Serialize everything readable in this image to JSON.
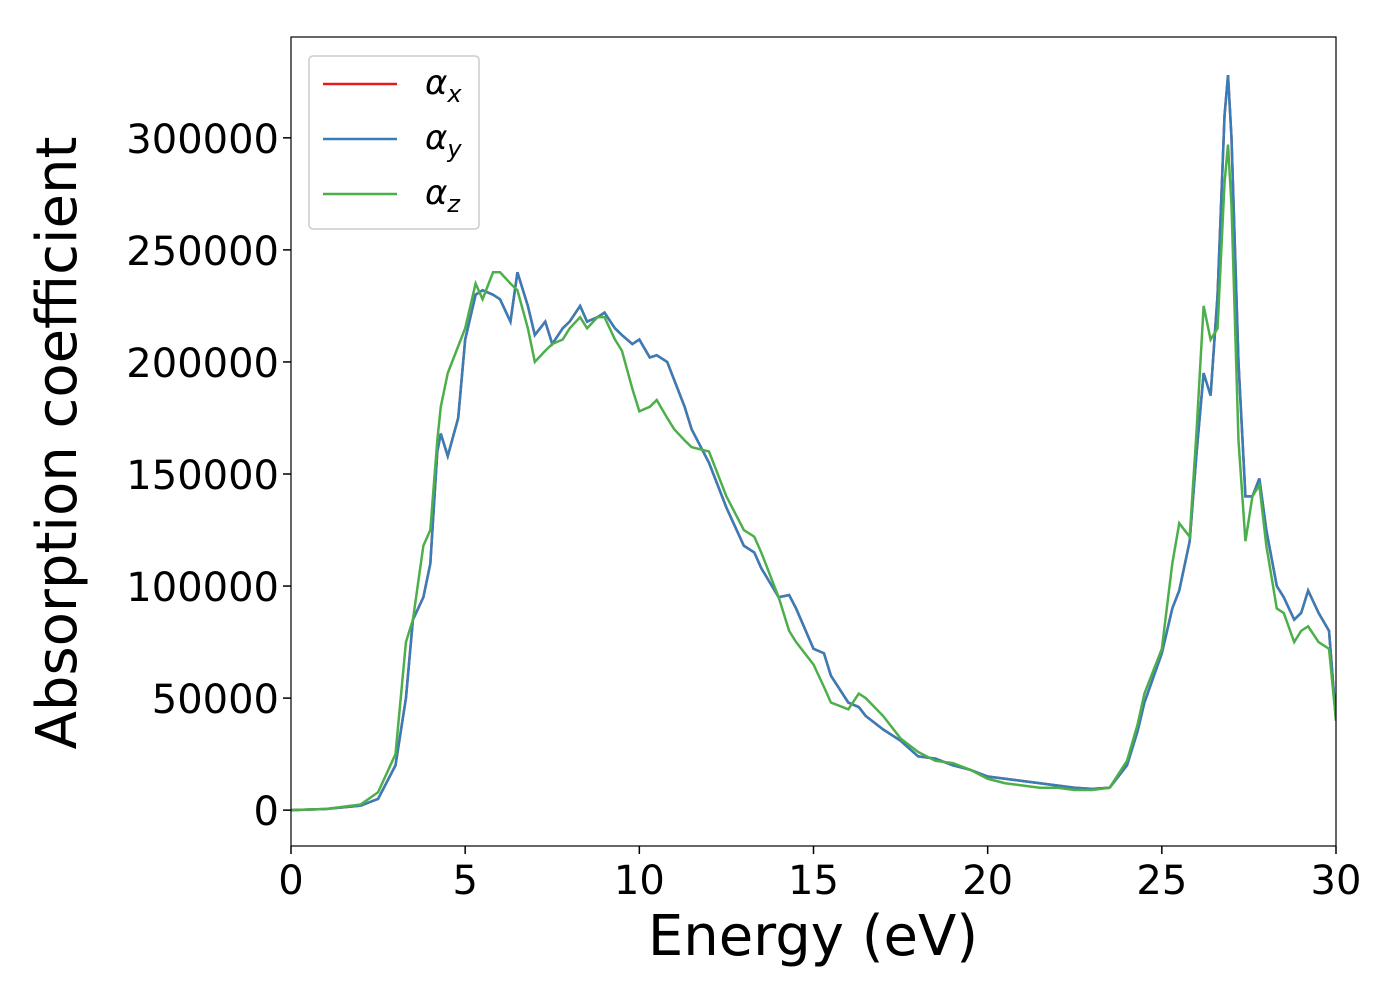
{
  "chart_data": {
    "type": "line",
    "x_label": "Energy (eV)",
    "y_label": "Absorption coefficient",
    "xlim": [
      0,
      30
    ],
    "ylim": [
      -16000,
      345000
    ],
    "xticks": [
      0,
      5,
      10,
      15,
      20,
      25,
      30
    ],
    "yticks": [
      0,
      50000,
      100000,
      150000,
      200000,
      250000,
      300000
    ],
    "grid": false,
    "legend": "upper left",
    "x": [
      0,
      1,
      2,
      2.5,
      3,
      3.3,
      3.5,
      3.8,
      4,
      4.2,
      4.3,
      4.5,
      4.8,
      5,
      5.3,
      5.5,
      5.8,
      6,
      6.3,
      6.5,
      6.8,
      7,
      7.3,
      7.5,
      7.8,
      8,
      8.3,
      8.5,
      8.8,
      9,
      9.3,
      9.5,
      9.8,
      10,
      10.3,
      10.5,
      10.8,
      11,
      11.3,
      11.5,
      12,
      12.5,
      13,
      13.3,
      13.5,
      14,
      14.3,
      14.5,
      15,
      15.3,
      15.5,
      16,
      16.3,
      16.5,
      17,
      17.5,
      18,
      18.5,
      19,
      19.5,
      20,
      20.5,
      21,
      21.5,
      22,
      22.5,
      23,
      23.5,
      24,
      24.3,
      24.5,
      25,
      25.3,
      25.5,
      25.8,
      26,
      26.2,
      26.4,
      26.6,
      26.8,
      26.9,
      27,
      27.2,
      27.4,
      27.6,
      27.8,
      28,
      28.3,
      28.5,
      28.8,
      29,
      29.2,
      29.5,
      29.8,
      30
    ],
    "series": [
      {
        "name": "αx",
        "color": "#e41a1c",
        "values": [
          0,
          500,
          2000,
          5000,
          20000,
          50000,
          85000,
          95000,
          110000,
          160000,
          168000,
          158000,
          175000,
          210000,
          230000,
          232000,
          230000,
          228000,
          218000,
          240000,
          225000,
          212000,
          218000,
          208000,
          215000,
          218000,
          225000,
          218000,
          220000,
          222000,
          215000,
          212000,
          208000,
          210000,
          202000,
          203000,
          200000,
          192000,
          180000,
          170000,
          155000,
          135000,
          118000,
          115000,
          108000,
          95000,
          96000,
          90000,
          72000,
          70000,
          60000,
          48000,
          46000,
          42000,
          36000,
          31000,
          24000,
          23000,
          20000,
          18000,
          15000,
          14000,
          13000,
          12000,
          11000,
          10000,
          9500,
          10000,
          20000,
          35000,
          48000,
          70000,
          90000,
          98000,
          120000,
          160000,
          195000,
          185000,
          230000,
          310000,
          328000,
          300000,
          200000,
          140000,
          140000,
          148000,
          125000,
          100000,
          95000,
          85000,
          88000,
          98000,
          88000,
          80000,
          40000
        ]
      },
      {
        "name": "αy",
        "color": "#377eb8",
        "values": [
          0,
          500,
          2000,
          5000,
          20000,
          50000,
          85000,
          95000,
          110000,
          160000,
          168000,
          158000,
          175000,
          210000,
          230000,
          232000,
          230000,
          228000,
          218000,
          240000,
          225000,
          212000,
          218000,
          208000,
          215000,
          218000,
          225000,
          218000,
          220000,
          222000,
          215000,
          212000,
          208000,
          210000,
          202000,
          203000,
          200000,
          192000,
          180000,
          170000,
          155000,
          135000,
          118000,
          115000,
          108000,
          95000,
          96000,
          90000,
          72000,
          70000,
          60000,
          48000,
          46000,
          42000,
          36000,
          31000,
          24000,
          23000,
          20000,
          18000,
          15000,
          14000,
          13000,
          12000,
          11000,
          10000,
          9500,
          10000,
          20000,
          35000,
          48000,
          70000,
          90000,
          98000,
          120000,
          160000,
          195000,
          185000,
          230000,
          310000,
          328000,
          300000,
          200000,
          140000,
          140000,
          148000,
          125000,
          100000,
          95000,
          85000,
          88000,
          98000,
          88000,
          80000,
          40000
        ]
      },
      {
        "name": "αz",
        "color": "#4daf4a",
        "values": [
          0,
          500,
          2500,
          8000,
          25000,
          75000,
          85000,
          118000,
          125000,
          165000,
          180000,
          195000,
          207000,
          215000,
          235000,
          228000,
          240000,
          240000,
          235000,
          232000,
          215000,
          200000,
          205000,
          208000,
          210000,
          215000,
          220000,
          215000,
          220000,
          220000,
          210000,
          205000,
          188000,
          178000,
          180000,
          183000,
          175000,
          170000,
          165000,
          162000,
          160000,
          140000,
          125000,
          122000,
          115000,
          95000,
          80000,
          75000,
          65000,
          55000,
          48000,
          45000,
          52000,
          50000,
          42000,
          32000,
          26000,
          22000,
          21000,
          18000,
          14000,
          12000,
          11000,
          10000,
          10000,
          9000,
          9000,
          10000,
          22000,
          38000,
          52000,
          72000,
          110000,
          128000,
          122000,
          170000,
          225000,
          210000,
          215000,
          280000,
          297000,
          270000,
          165000,
          120000,
          140000,
          145000,
          118000,
          90000,
          88000,
          75000,
          80000,
          82000,
          75000,
          72000,
          40000
        ]
      }
    ]
  }
}
